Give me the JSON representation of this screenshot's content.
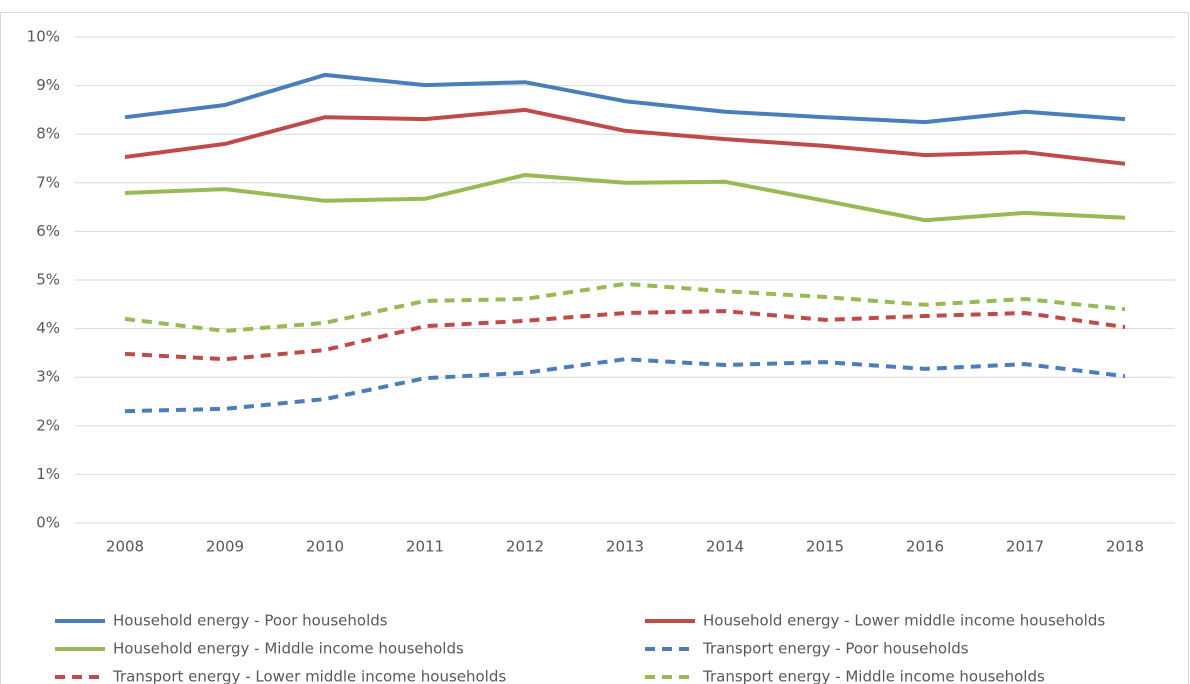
{
  "chart_data": {
    "type": "line",
    "categories": [
      "2008",
      "2009",
      "2010",
      "2011",
      "2012",
      "2013",
      "2014",
      "2015",
      "2016",
      "2017",
      "2018"
    ],
    "series": [
      {
        "name": "Household energy - Poor households",
        "color": "#4a7ebb",
        "dashed": false,
        "values": [
          8.35,
          8.6,
          9.22,
          9.01,
          9.07,
          8.68,
          8.46,
          8.35,
          8.25,
          8.46,
          8.31
        ]
      },
      {
        "name": "Household energy - Lower middle income households",
        "color": "#be4b48",
        "dashed": false,
        "values": [
          7.53,
          7.8,
          8.35,
          8.31,
          8.5,
          8.07,
          7.9,
          7.76,
          7.57,
          7.63,
          7.39
        ]
      },
      {
        "name": "Household energy - Middle income households",
        "color": "#98b954",
        "dashed": false,
        "values": [
          6.79,
          6.87,
          6.63,
          6.67,
          7.16,
          7.0,
          7.02,
          6.63,
          6.23,
          6.38,
          6.28
        ]
      },
      {
        "name": "Transport energy - Poor households",
        "color": "#4a7ebb",
        "dashed": true,
        "values": [
          2.3,
          2.35,
          2.55,
          2.98,
          3.09,
          3.37,
          3.25,
          3.31,
          3.17,
          3.27,
          3.02
        ]
      },
      {
        "name": "Transport energy - Lower middle income  households",
        "color": "#be4b48",
        "dashed": true,
        "values": [
          3.48,
          3.37,
          3.56,
          4.05,
          4.16,
          4.32,
          4.36,
          4.18,
          4.26,
          4.32,
          4.03
        ]
      },
      {
        "name": "Transport energy - Middle income  households",
        "color": "#98b954",
        "dashed": true,
        "values": [
          4.2,
          3.95,
          4.12,
          4.57,
          4.61,
          4.92,
          4.77,
          4.65,
          4.49,
          4.61,
          4.4
        ]
      }
    ],
    "ylim": [
      0,
      10
    ],
    "yticks": [
      {
        "value": 0,
        "label": "0%"
      },
      {
        "value": 1,
        "label": "1%"
      },
      {
        "value": 2,
        "label": "2%"
      },
      {
        "value": 3,
        "label": "3%"
      },
      {
        "value": 4,
        "label": "4%"
      },
      {
        "value": 5,
        "label": "5%"
      },
      {
        "value": 6,
        "label": "6%"
      },
      {
        "value": 7,
        "label": "7%"
      },
      {
        "value": 8,
        "label": "8%"
      },
      {
        "value": 9,
        "label": "9%"
      },
      {
        "value": 10,
        "label": "10%"
      }
    ],
    "grid": true,
    "legend": "bottom"
  }
}
